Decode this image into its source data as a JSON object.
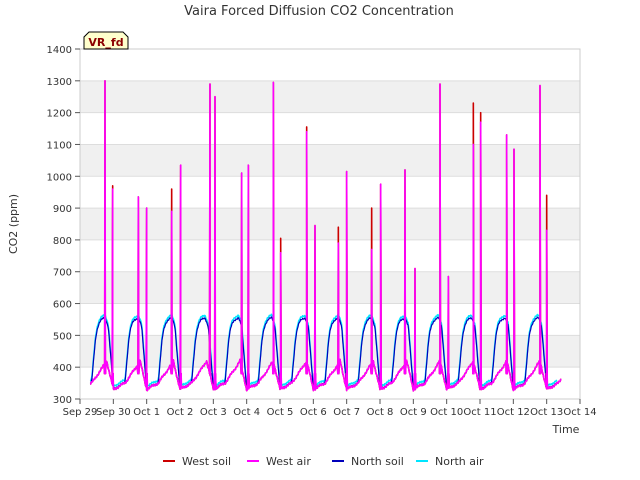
{
  "chart_data": {
    "type": "line",
    "title": "Vaira Forced Diffusion CO2 Concentration",
    "badge": "VR_fd",
    "xlabel": "Time",
    "ylabel": "CO2 (ppm)",
    "ylim": [
      300,
      1400
    ],
    "yticks": [
      300,
      400,
      500,
      600,
      700,
      800,
      900,
      1000,
      1100,
      1200,
      1300,
      1400
    ],
    "x_ticks": [
      {
        "day": 0,
        "label": "Sep 29"
      },
      {
        "day": 1,
        "label": "Sep 30"
      },
      {
        "day": 2,
        "label": "Oct 1"
      },
      {
        "day": 3,
        "label": "Oct 2"
      },
      {
        "day": 4,
        "label": "Oct 3"
      },
      {
        "day": 5,
        "label": "Oct 4"
      },
      {
        "day": 6,
        "label": "Oct 5"
      },
      {
        "day": 7,
        "label": "Oct 6"
      },
      {
        "day": 8,
        "label": "Oct 7"
      },
      {
        "day": 9,
        "label": "Oct 8"
      },
      {
        "day": 10,
        "label": "Oct 9"
      },
      {
        "day": 11,
        "label": "Oct 10"
      },
      {
        "day": 12,
        "label": "Oct 11"
      },
      {
        "day": 13,
        "label": "Oct 12"
      },
      {
        "day": 14,
        "label": "Oct 13"
      },
      {
        "day": 15,
        "label": "Oct 14"
      }
    ],
    "xlim_days": [
      0,
      15
    ],
    "grid": true,
    "legend_position": "bottom",
    "series": [
      {
        "name": "West soil",
        "color": "#cc0000",
        "peaks": [
          [
            0.75,
            1300
          ],
          [
            0.98,
            970
          ],
          [
            1.75,
            935
          ],
          [
            2.0,
            900
          ],
          [
            2.75,
            960
          ],
          [
            3.02,
            1035
          ],
          [
            3.9,
            1290
          ],
          [
            4.05,
            1250
          ],
          [
            4.85,
            1010
          ],
          [
            5.05,
            1035
          ],
          [
            5.8,
            1295
          ],
          [
            6.02,
            805
          ],
          [
            6.8,
            1155
          ],
          [
            7.05,
            845
          ],
          [
            7.75,
            840
          ],
          [
            8.0,
            1015
          ],
          [
            8.75,
            900
          ],
          [
            9.02,
            975
          ],
          [
            9.75,
            1020
          ],
          [
            10.05,
            710
          ],
          [
            10.8,
            1290
          ],
          [
            11.05,
            685
          ],
          [
            11.8,
            1230
          ],
          [
            12.02,
            1200
          ],
          [
            12.8,
            1130
          ],
          [
            13.02,
            1085
          ],
          [
            13.8,
            1285
          ],
          [
            14.0,
            940
          ]
        ]
      },
      {
        "name": "West air",
        "color": "#ff00ff",
        "peaks": [
          [
            0.75,
            1300
          ],
          [
            0.98,
            960
          ],
          [
            1.75,
            935
          ],
          [
            2.0,
            900
          ],
          [
            2.75,
            890
          ],
          [
            3.02,
            1035
          ],
          [
            3.9,
            1290
          ],
          [
            4.05,
            1250
          ],
          [
            4.85,
            1010
          ],
          [
            5.05,
            1035
          ],
          [
            5.8,
            1295
          ],
          [
            6.02,
            760
          ],
          [
            6.8,
            1140
          ],
          [
            7.05,
            845
          ],
          [
            7.75,
            790
          ],
          [
            8.0,
            1015
          ],
          [
            8.75,
            770
          ],
          [
            9.02,
            975
          ],
          [
            9.75,
            1020
          ],
          [
            10.05,
            710
          ],
          [
            10.8,
            1290
          ],
          [
            11.05,
            685
          ],
          [
            11.8,
            1100
          ],
          [
            12.02,
            1170
          ],
          [
            12.8,
            1130
          ],
          [
            13.02,
            1085
          ],
          [
            13.8,
            1285
          ],
          [
            14.0,
            830
          ]
        ]
      },
      {
        "name": "North soil",
        "color": "#0000bb"
      },
      {
        "name": "North air",
        "color": "#00e5ff"
      }
    ]
  }
}
